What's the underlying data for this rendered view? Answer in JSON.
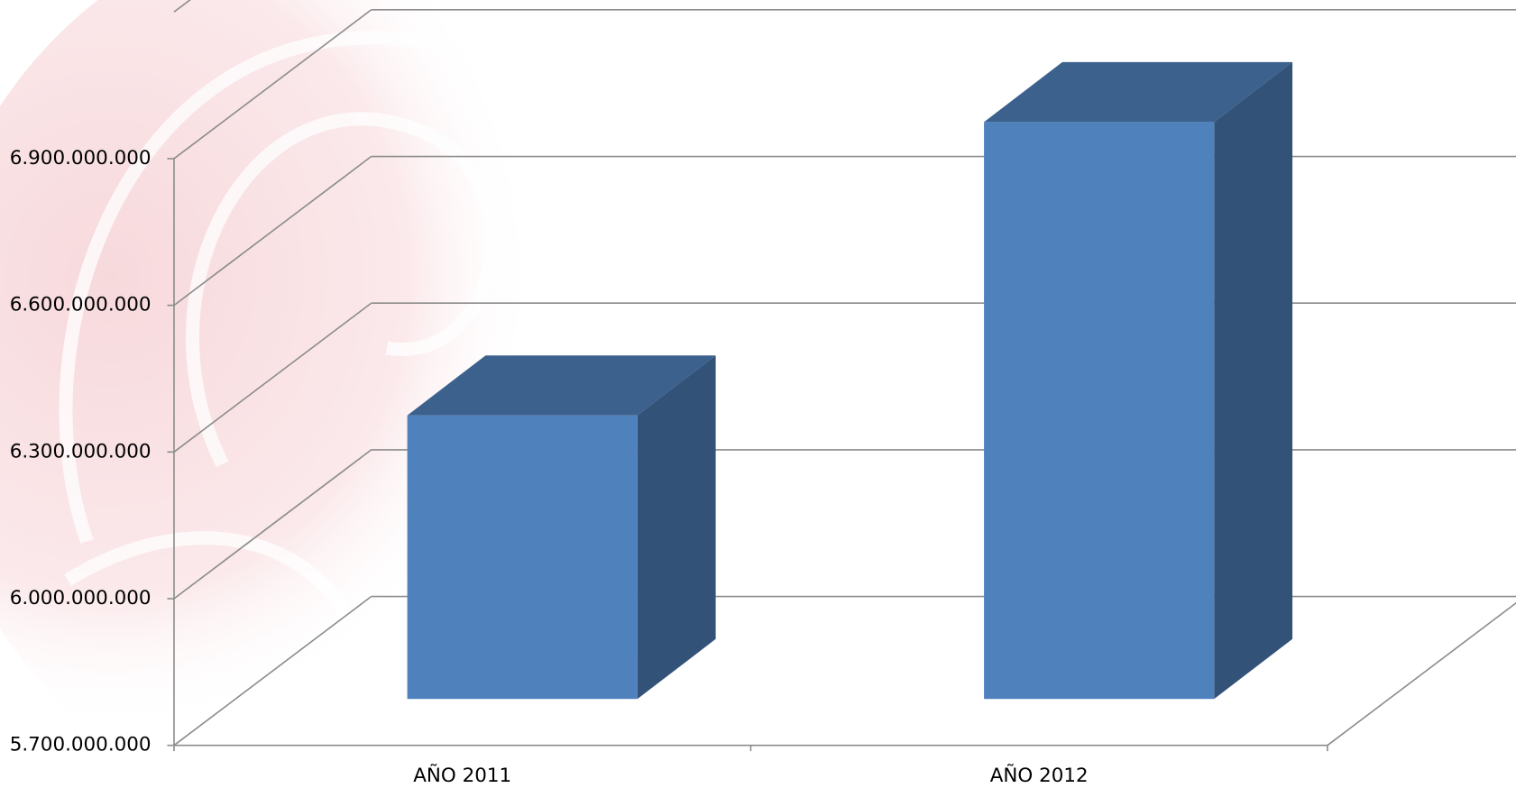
{
  "chart_data": {
    "type": "bar3d",
    "categories": [
      "AÑO 2011",
      "AÑO 2012"
    ],
    "values": [
      6280000000,
      6880000000
    ],
    "color": "#4f81bd",
    "ylim": [
      5700000000,
      7200000000
    ],
    "yticks": [
      {
        "value": 5700000000,
        "label": "5.700.000.000"
      },
      {
        "value": 6000000000,
        "label": "6.000.000.000"
      },
      {
        "value": 6300000000,
        "label": "6.300.000.000"
      },
      {
        "value": 6600000000,
        "label": "6.600.000.000"
      },
      {
        "value": 6900000000,
        "label": "6.900.000.000"
      }
    ],
    "grid": true
  }
}
